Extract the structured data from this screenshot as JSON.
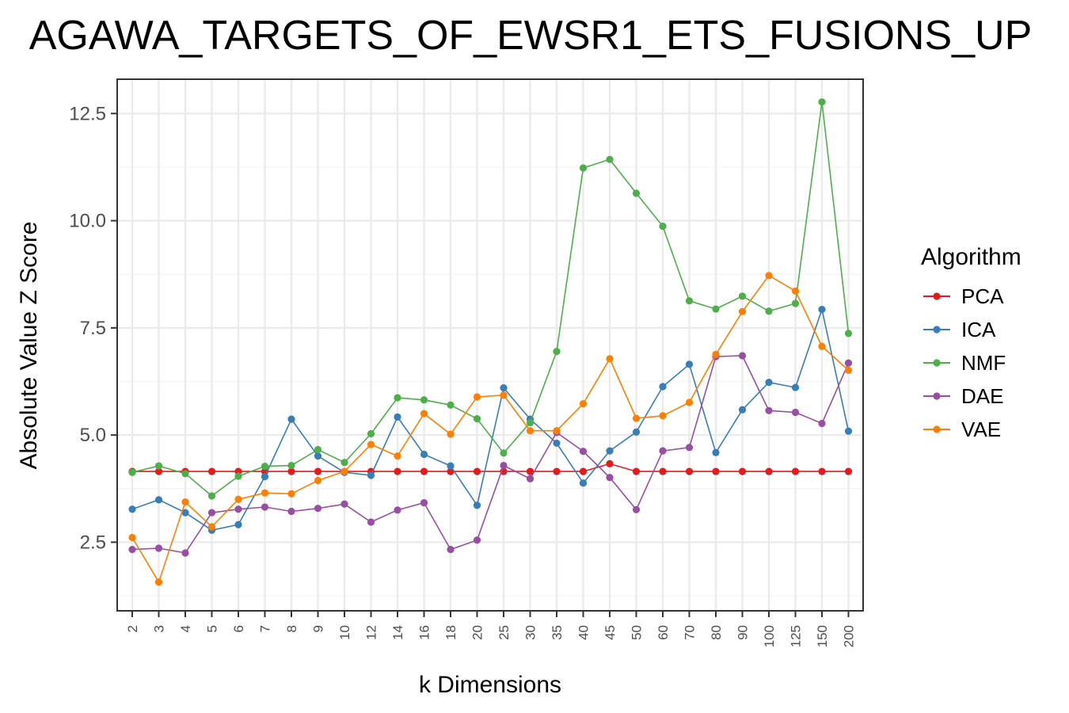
{
  "chart_data": {
    "type": "line",
    "title": "AGAWA_TARGETS_OF_EWSR1_ETS_FUSIONS_UP",
    "xlabel": "k Dimensions",
    "ylabel": "Absolute Value Z Score",
    "categories": [
      "2",
      "3",
      "4",
      "5",
      "6",
      "7",
      "8",
      "9",
      "10",
      "12",
      "14",
      "16",
      "18",
      "20",
      "25",
      "30",
      "35",
      "40",
      "45",
      "50",
      "60",
      "70",
      "80",
      "90",
      "100",
      "125",
      "150",
      "200"
    ],
    "ylim": [
      0.9,
      13.3
    ],
    "yticks": [
      2.5,
      5.0,
      7.5,
      10.0,
      12.5
    ],
    "ytick_labels": [
      "2.5",
      "5.0",
      "7.5",
      "10.0",
      "12.5"
    ],
    "grid": true,
    "legend": {
      "title": "Algorithm",
      "position": "right"
    },
    "series": [
      {
        "name": "PCA",
        "color": "#E41A1C",
        "values": [
          4.15,
          4.15,
          4.15,
          4.15,
          4.15,
          4.15,
          4.15,
          4.15,
          4.15,
          4.15,
          4.15,
          4.15,
          4.15,
          4.15,
          4.15,
          4.15,
          4.15,
          4.15,
          4.33,
          4.15,
          4.15,
          4.15,
          4.15,
          4.15,
          4.15,
          4.15,
          4.15,
          4.15
        ]
      },
      {
        "name": "ICA",
        "color": "#377EB8",
        "values": [
          3.27,
          3.49,
          3.19,
          2.78,
          2.91,
          4.03,
          5.37,
          4.51,
          4.13,
          4.06,
          5.42,
          4.55,
          4.28,
          3.36,
          6.1,
          5.37,
          4.81,
          3.88,
          4.63,
          5.07,
          6.13,
          6.65,
          4.59,
          5.59,
          6.23,
          6.11,
          7.93,
          5.09
        ]
      },
      {
        "name": "NMF",
        "color": "#4DAF4A",
        "values": [
          4.13,
          4.28,
          4.1,
          3.58,
          4.04,
          4.27,
          4.29,
          4.66,
          4.36,
          5.03,
          5.87,
          5.82,
          5.7,
          5.38,
          4.58,
          5.29,
          6.95,
          11.23,
          11.43,
          10.64,
          9.87,
          8.13,
          7.94,
          8.24,
          7.89,
          8.07,
          12.77,
          7.37
        ]
      },
      {
        "name": "DAE",
        "color": "#984EA3",
        "values": [
          2.33,
          2.36,
          2.25,
          3.19,
          3.27,
          3.32,
          3.22,
          3.29,
          3.39,
          2.97,
          3.25,
          3.42,
          2.33,
          2.55,
          4.29,
          3.98,
          5.06,
          4.62,
          4.01,
          3.26,
          4.63,
          4.71,
          6.83,
          6.85,
          5.57,
          5.53,
          5.27,
          6.68
        ]
      },
      {
        "name": "VAE",
        "color": "#FF7F00",
        "values": [
          2.61,
          1.57,
          3.44,
          2.86,
          3.5,
          3.65,
          3.63,
          3.94,
          4.15,
          4.78,
          4.51,
          5.5,
          5.02,
          5.89,
          5.93,
          5.1,
          5.1,
          5.73,
          6.78,
          5.39,
          5.45,
          5.76,
          6.88,
          7.88,
          8.72,
          8.36,
          7.07,
          6.51
        ]
      }
    ]
  }
}
